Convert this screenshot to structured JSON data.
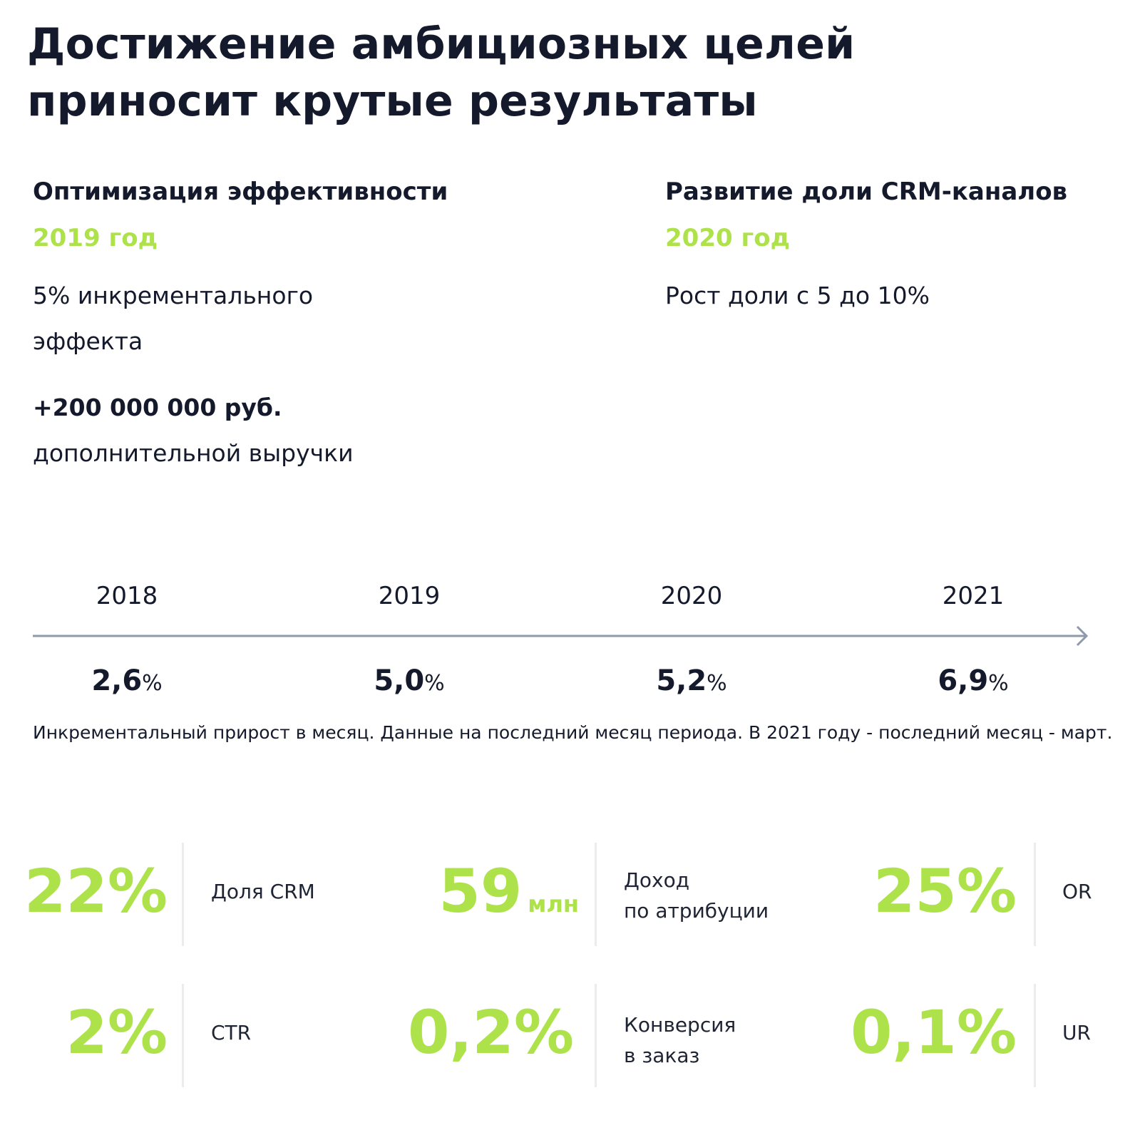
{
  "header": {
    "title": "Достижение амбициозных целей приносит крутые результаты"
  },
  "achievements": [
    {
      "title": "Оптимизация эффективности",
      "year": "2019 год",
      "description": "5% инкрементального эффекта",
      "revenue_amount": "+200 000 000 руб.",
      "revenue_label": "дополнительной выручки"
    },
    {
      "title": "Развитие доли CRM-каналов",
      "year": "2020 год",
      "description": "Рост доли с 5 до 10%"
    }
  ],
  "timeline": {
    "years": [
      "2018",
      "2019",
      "2020",
      "2021"
    ],
    "values": [
      "2,6",
      "5,0",
      "5,2",
      "6,9"
    ],
    "percent_sign": "%",
    "footnote": "Инкрементальный прирост в месяц. Данные на последний месяц периода. В 2021 году - последний месяц - март."
  },
  "metrics": [
    {
      "value": "22%",
      "unit": "",
      "label_lines": [
        "Доля CRM"
      ]
    },
    {
      "value": "59",
      "unit": "млн",
      "label_lines": [
        "Доход",
        "по атрибуции"
      ]
    },
    {
      "value": "25%",
      "unit": "",
      "label_lines": [
        "OR"
      ]
    },
    {
      "value": "2%",
      "unit": "",
      "label_lines": [
        "CTR"
      ]
    },
    {
      "value": "0,2%",
      "unit": "",
      "label_lines": [
        "Конверсия",
        "в заказ"
      ]
    },
    {
      "value": "0,1%",
      "unit": "",
      "label_lines": [
        "UR"
      ]
    }
  ],
  "colors": {
    "accent": "#aee24a",
    "text": "#141a2c",
    "timeline_line": "#8c9aaa",
    "divider": "#ececec"
  }
}
